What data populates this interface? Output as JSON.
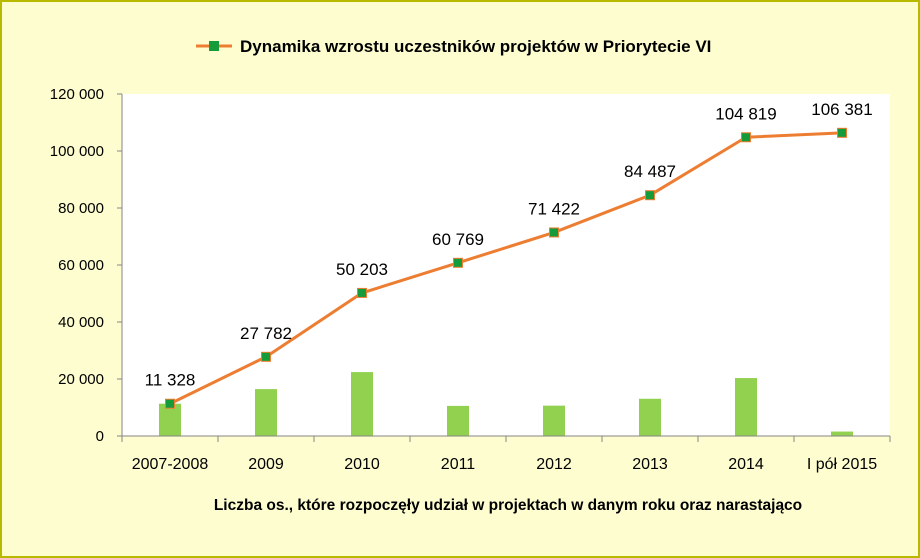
{
  "chart_data": {
    "type": "line",
    "categories": [
      "2007-2008",
      "2009",
      "2010",
      "2011",
      "2012",
      "2013",
      "2014",
      "I pół 2015"
    ],
    "series": [
      {
        "name": "Dynamika wzrostu uczestników projektów w Priorytecie VI",
        "kind": "line",
        "values": [
          11328,
          27782,
          50203,
          60769,
          71422,
          84487,
          104819,
          106381
        ],
        "labels": [
          "11 328",
          "27 782",
          "50 203",
          "60 769",
          "71 422",
          "84 487",
          "104 819",
          "106 381"
        ]
      },
      {
        "kind": "bar",
        "values": [
          11328,
          16454,
          22421,
          10566,
          10653,
          13065,
          20332,
          1562
        ]
      }
    ],
    "yticks": [
      "0",
      "20 000",
      "40 000",
      "60 000",
      "80 000",
      "100 000",
      "120 000"
    ],
    "ylim": [
      0,
      120000
    ],
    "xlabel": "Liczba os., które rozpoczęły udział w projektach w danym roku  oraz narastająco",
    "legend_position": "top",
    "grid": false
  },
  "colors": {
    "background": "#fdfdd0",
    "plot_area": "#ffffff",
    "line": "#ed7d31",
    "marker": "#169b3b",
    "bar": "#92d050",
    "border": "#b9b900"
  }
}
